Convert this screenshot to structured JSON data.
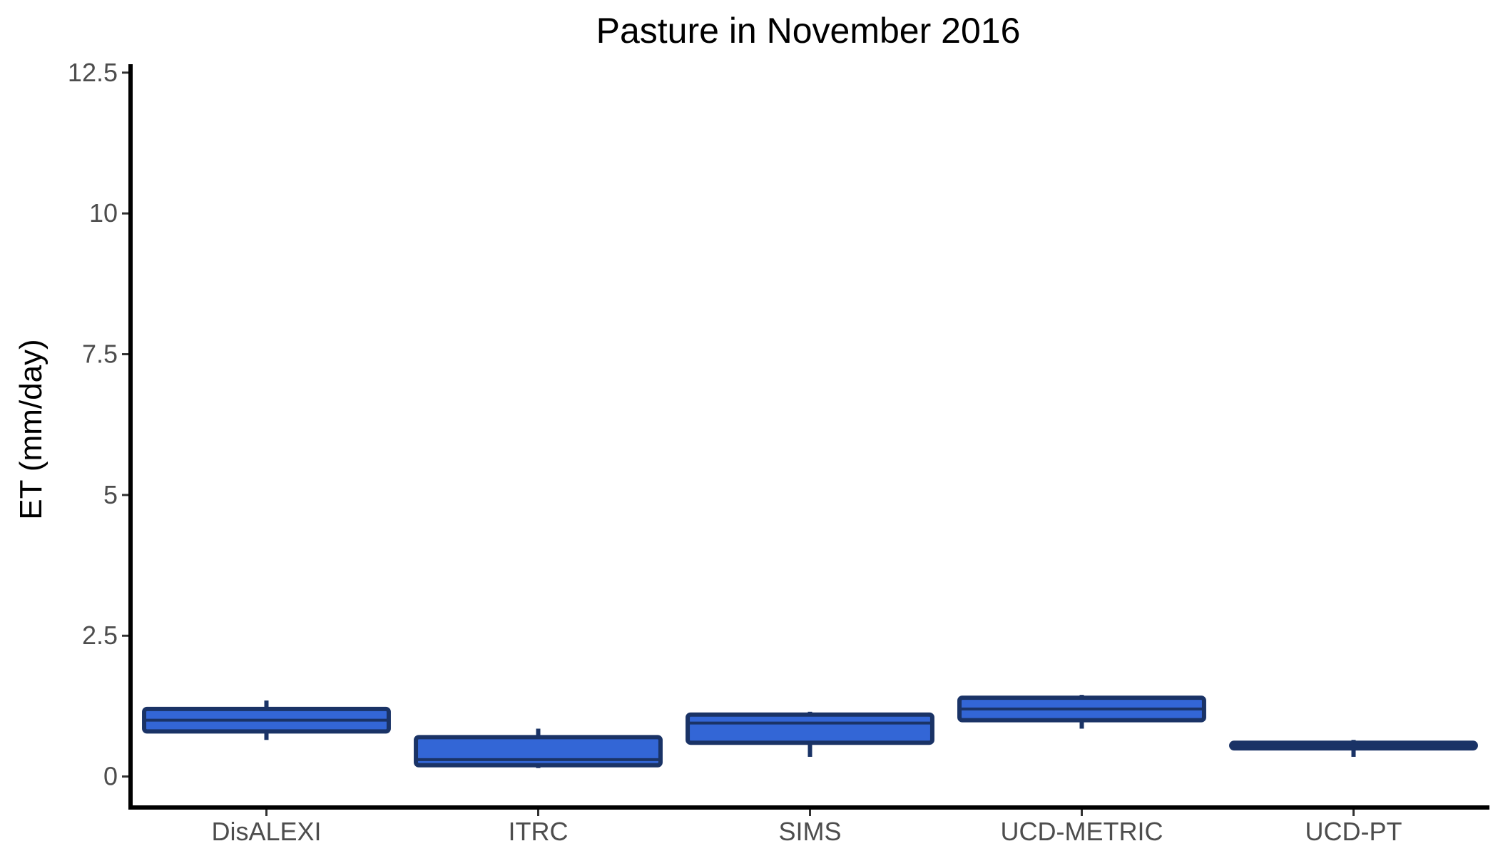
{
  "chart_data": {
    "type": "boxplot",
    "title": "Pasture in November 2016",
    "xlabel": "",
    "ylabel": "ET (mm/day)",
    "ylim": [
      -0.55,
      12.65
    ],
    "yticks": [
      0,
      2.5,
      5,
      7.5,
      10,
      12.5
    ],
    "ytick_labels": [
      "0",
      "2.5",
      "5",
      "7.5",
      "10",
      "12.5"
    ],
    "grid": false,
    "categories": [
      "DisALEXI",
      "ITRC",
      "SIMS",
      "UCD-METRIC",
      "UCD-PT"
    ],
    "boxes": [
      {
        "min": 0.65,
        "q1": 0.8,
        "median": 1.0,
        "q3": 1.2,
        "max": 1.35
      },
      {
        "min": 0.15,
        "q1": 0.2,
        "median": 0.3,
        "q3": 0.7,
        "max": 0.85
      },
      {
        "min": 0.35,
        "q1": 0.6,
        "median": 0.95,
        "q3": 1.1,
        "max": 1.15
      },
      {
        "min": 0.85,
        "q1": 1.0,
        "median": 1.2,
        "q3": 1.4,
        "max": 1.45
      },
      {
        "min": 0.35,
        "q1": 0.5,
        "median": 0.55,
        "q3": 0.6,
        "max": 0.65
      }
    ],
    "colors": {
      "box_fill": "#3366d6",
      "box_outline": "#1a3366",
      "axis": "#000000"
    }
  }
}
